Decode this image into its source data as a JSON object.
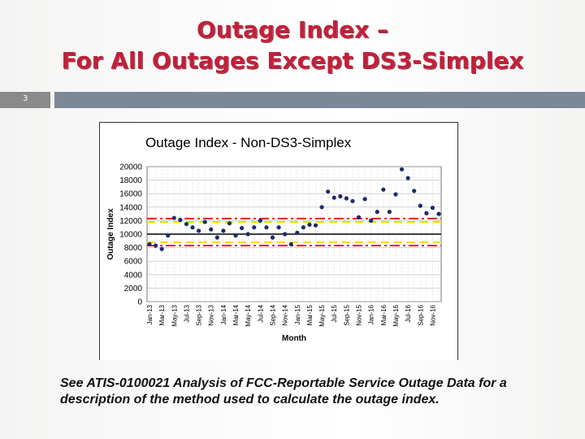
{
  "slide": {
    "title_line1": "Outage Index –",
    "title_line2": "For All Outages Except DS3-Simplex",
    "number": "3",
    "caption": "See ATIS-0100021 Analysis of FCC-Reportable Service Outage Data for a description of the method used to calculate the outage index.",
    "colors": {
      "title": "#c0203a",
      "bar": "#7c8898",
      "marker": "#1e2a6e"
    }
  },
  "chart_data": {
    "type": "scatter",
    "title": "Outage Index - Non-DS3-Simplex",
    "xlabel": "Month",
    "ylabel": "Outage Index",
    "ylim": [
      0,
      20000
    ],
    "y_ticks": [
      "0",
      "2000",
      "4000",
      "6000",
      "8000",
      "10000",
      "12000",
      "14000",
      "16000",
      "18000",
      "20000"
    ],
    "x_tick_labels": [
      "Jan-13",
      "Mar-13",
      "May-13",
      "Jul-13",
      "Sep-13",
      "Nov-13",
      "Jan-14",
      "Mar-14",
      "May-14",
      "Jul-14",
      "Sep-14",
      "Nov-14",
      "Jan-15",
      "Mar-15",
      "May-15",
      "Jul-15",
      "Sep-15",
      "Nov-15",
      "Jan-16",
      "Mar-16",
      "May-16",
      "Jul-16",
      "Sep-16",
      "Nov-16"
    ],
    "grid": true,
    "legend": "none",
    "series": [
      {
        "color": "#1e2a6e",
        "x": [
          "Jan-13",
          "Feb-13",
          "Mar-13",
          "Apr-13",
          "May-13",
          "Jun-13",
          "Jul-13",
          "Aug-13",
          "Sep-13",
          "Oct-13",
          "Nov-13",
          "Dec-13",
          "Jan-14",
          "Feb-14",
          "Mar-14",
          "Apr-14",
          "May-14",
          "Jun-14",
          "Jul-14",
          "Aug-14",
          "Sep-14",
          "Oct-14",
          "Nov-14",
          "Dec-14",
          "Jan-15",
          "Feb-15",
          "Mar-15",
          "Apr-15",
          "May-15",
          "Jun-15",
          "Jul-15",
          "Aug-15",
          "Sep-15",
          "Oct-15",
          "Nov-15",
          "Dec-15",
          "Jan-16",
          "Feb-16",
          "Mar-16",
          "Apr-16",
          "May-16",
          "Jun-16",
          "Jul-16",
          "Aug-16",
          "Sep-16",
          "Oct-16",
          "Nov-16",
          "Dec-16"
        ],
        "values": [
          8500,
          8300,
          7800,
          9800,
          12400,
          12100,
          11500,
          11000,
          10500,
          11800,
          10700,
          9500,
          10500,
          11600,
          9800,
          10900,
          10000,
          11000,
          12000,
          11000,
          9500,
          11000,
          10000,
          8500,
          10200,
          11000,
          11400,
          11300,
          14000,
          16300,
          15400,
          15600,
          15300,
          14900,
          12500,
          15200,
          12000,
          13300,
          16600,
          13300,
          15900,
          19600,
          18300,
          16400,
          14200,
          13100,
          13900,
          13000
        ]
      }
    ],
    "reference_lines": [
      {
        "value": 10000,
        "style": "solid",
        "color": "#000000"
      },
      {
        "value": 11800,
        "style": "dash",
        "color": "#f0e000"
      },
      {
        "value": 8800,
        "style": "dash",
        "color": "#f0e000"
      },
      {
        "value": 12300,
        "style": "dash-dot",
        "color": "#e02020"
      },
      {
        "value": 8300,
        "style": "dash-dot",
        "color": "#e02020"
      }
    ]
  }
}
